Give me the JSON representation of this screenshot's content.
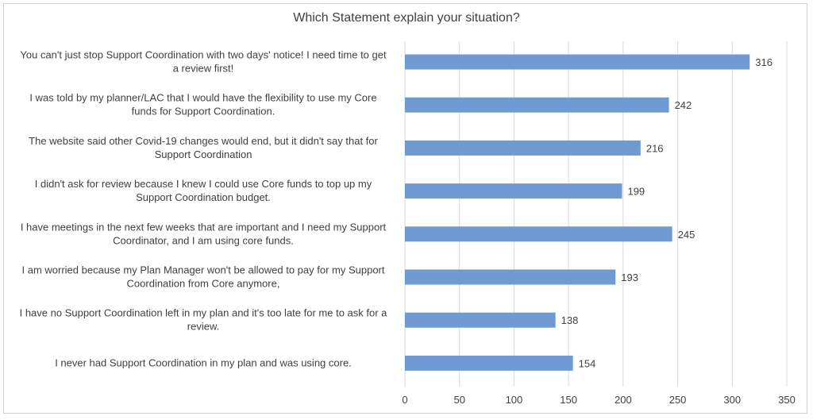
{
  "chart_data": {
    "type": "bar",
    "orientation": "horizontal",
    "title": "Which Statement explain your situation?",
    "xlabel": "",
    "ylabel": "",
    "xlim": [
      0,
      350
    ],
    "x_ticks": [
      0,
      50,
      100,
      150,
      200,
      250,
      300,
      350
    ],
    "grid": "vertical",
    "bar_color": "#6f9bd2",
    "categories": [
      [
        "You can't just stop Support Coordination with two days' notice! I need time to get",
        "a review first!"
      ],
      [
        "I was told by my planner/LAC that I would have the flexibility to use my Core",
        "funds for Support Coordination."
      ],
      [
        "The website said other Covid-19 changes would end, but it didn't say that for",
        "Support Coordination"
      ],
      [
        "I didn't ask for review because I knew I could use Core funds to top up my",
        "Support Coordination budget."
      ],
      [
        "I have meetings in the next few weeks that are important and I need my Support",
        "Coordinator, and I am using core funds."
      ],
      [
        "I am worried because my Plan Manager won't be allowed to pay for my Support",
        "Coordination from Core anymore,"
      ],
      [
        "I have no Support Coordination left in my plan and it's too late for me to ask for a",
        "review."
      ],
      [
        "I never had Support Coordination in my plan and was using core."
      ]
    ],
    "values": [
      316,
      242,
      216,
      199,
      245,
      193,
      138,
      154
    ]
  }
}
